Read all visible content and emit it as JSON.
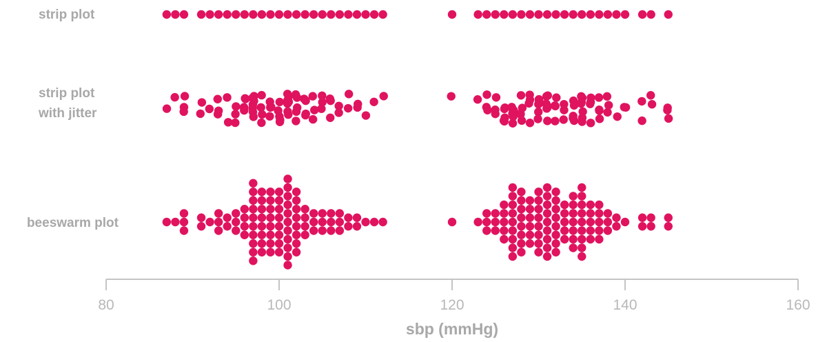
{
  "chart_data": {
    "type": "scatter",
    "title": "",
    "xlabel": "sbp (mmHg)",
    "ylabel": "",
    "xlim": [
      80,
      160
    ],
    "x_ticks": [
      80,
      100,
      120,
      140,
      160
    ],
    "grid": false,
    "color": "#e0135f",
    "rows": [
      {
        "label_lines": [
          "strip plot"
        ],
        "style": "strip",
        "values": [
          87,
          88,
          89,
          91,
          92,
          93,
          94,
          95,
          96,
          97,
          98,
          99,
          100,
          101,
          102,
          103,
          104,
          105,
          106,
          107,
          108,
          109,
          110,
          111,
          112,
          120,
          123,
          124,
          125,
          126,
          127,
          128,
          129,
          130,
          131,
          132,
          133,
          134,
          135,
          136,
          137,
          138,
          139,
          140,
          142,
          143,
          145
        ]
      },
      {
        "label_lines": [
          "strip plot",
          "with jitter"
        ],
        "style": "jitter",
        "values": [
          87,
          88,
          89,
          89,
          89,
          91,
          91,
          92,
          93,
          93,
          93,
          94,
          94,
          95,
          95,
          95,
          96,
          96,
          96,
          96,
          97,
          97,
          97,
          97,
          97,
          97,
          97,
          98,
          98,
          98,
          98,
          99,
          99,
          99,
          99,
          99,
          100,
          100,
          100,
          100,
          100,
          101,
          101,
          101,
          101,
          101,
          101,
          101,
          102,
          102,
          102,
          102,
          102,
          103,
          103,
          103,
          103,
          104,
          104,
          104,
          105,
          105,
          105,
          106,
          106,
          106,
          107,
          107,
          108,
          108,
          109,
          109,
          110,
          111,
          112,
          120,
          123,
          124,
          124,
          124,
          125,
          125,
          125,
          126,
          126,
          126,
          126,
          126,
          127,
          127,
          127,
          127,
          127,
          127,
          127,
          128,
          128,
          128,
          128,
          128,
          129,
          129,
          129,
          129,
          130,
          130,
          130,
          130,
          130,
          130,
          131,
          131,
          131,
          131,
          131,
          131,
          131,
          132,
          132,
          132,
          132,
          133,
          133,
          133,
          134,
          134,
          134,
          134,
          134,
          135,
          135,
          135,
          135,
          135,
          135,
          135,
          136,
          136,
          136,
          136,
          137,
          137,
          137,
          137,
          138,
          138,
          138,
          139,
          140,
          140,
          142,
          142,
          143,
          143,
          145,
          145,
          145
        ]
      },
      {
        "label_lines": [
          "beeswarm plot"
        ],
        "style": "beeswarm",
        "values": [
          87,
          88,
          89,
          89,
          89,
          91,
          91,
          92,
          93,
          93,
          93,
          94,
          94,
          95,
          95,
          95,
          96,
          96,
          96,
          96,
          97,
          97,
          97,
          97,
          97,
          97,
          97,
          97,
          97,
          97,
          98,
          98,
          98,
          98,
          98,
          98,
          98,
          98,
          99,
          99,
          99,
          99,
          99,
          99,
          99,
          99,
          100,
          100,
          100,
          100,
          100,
          100,
          100,
          100,
          101,
          101,
          101,
          101,
          101,
          101,
          101,
          101,
          101,
          101,
          101,
          102,
          102,
          102,
          102,
          102,
          102,
          102,
          102,
          103,
          103,
          103,
          103,
          104,
          104,
          104,
          105,
          105,
          105,
          106,
          106,
          106,
          107,
          107,
          107,
          108,
          108,
          109,
          109,
          110,
          111,
          112,
          120,
          123,
          124,
          124,
          124,
          125,
          125,
          125,
          126,
          126,
          126,
          126,
          126,
          127,
          127,
          127,
          127,
          127,
          127,
          127,
          127,
          127,
          128,
          128,
          128,
          128,
          128,
          128,
          128,
          128,
          129,
          129,
          129,
          129,
          129,
          129,
          130,
          130,
          130,
          130,
          130,
          130,
          130,
          130,
          131,
          131,
          131,
          131,
          131,
          131,
          131,
          131,
          131,
          132,
          132,
          132,
          132,
          132,
          132,
          132,
          132,
          133,
          133,
          133,
          133,
          133,
          134,
          134,
          134,
          134,
          134,
          134,
          134,
          135,
          135,
          135,
          135,
          135,
          135,
          135,
          135,
          135,
          136,
          136,
          136,
          136,
          136,
          137,
          137,
          137,
          137,
          137,
          138,
          138,
          138,
          139,
          139,
          140,
          142,
          142,
          143,
          143,
          145,
          145
        ]
      }
    ]
  }
}
